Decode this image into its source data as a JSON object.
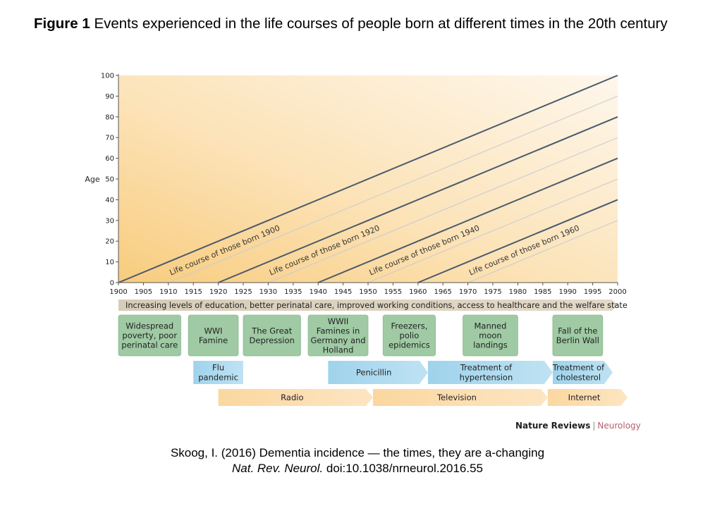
{
  "figure": {
    "label": "Figure 1",
    "title": "Events experienced in the life courses of people born at different times in the 20th century"
  },
  "publisher": {
    "name": "Nature Reviews",
    "separator": "|",
    "journal": "Neurology"
  },
  "citation": {
    "line1": "Skoog, I. (2016) Dementia incidence — the times, they are a-changing",
    "journal_abbrev": "Nat. Rev. Neurol.",
    "doi": "doi:10.1038/nrneurol.2016.55"
  },
  "colors": {
    "gradient_corner": "#f8cc7e",
    "gradient_mid": "#fbe1b3",
    "gradient_far": "#fef7ec",
    "cohort_line": "#4a5a6c",
    "minor_line": "#c8cdd3",
    "axis": "#555555",
    "green_box": "#9fcaa4",
    "green_box_border": "#8bbb92",
    "blue_arrow": "#a6d6ee",
    "orange_arrow": "#fbd9a4",
    "tan_arrow": "#d9cfbd"
  },
  "chart_data": {
    "type": "line",
    "xlabel": "",
    "ylabel": "Age",
    "xlim": [
      1900,
      2000
    ],
    "ylim": [
      0,
      100
    ],
    "x_ticks": [
      1900,
      1905,
      1910,
      1915,
      1920,
      1925,
      1930,
      1935,
      1940,
      1945,
      1950,
      1955,
      1960,
      1965,
      1970,
      1975,
      1980,
      1985,
      1990,
      1995,
      2000
    ],
    "y_ticks": [
      0,
      10,
      20,
      30,
      40,
      50,
      60,
      70,
      80,
      90,
      100
    ],
    "grid": false,
    "series": [
      {
        "name": "Life course of those born 1900",
        "points": [
          [
            1900,
            0
          ],
          [
            2000,
            100
          ]
        ]
      },
      {
        "name": "Life course of those born 1920",
        "points": [
          [
            1920,
            0
          ],
          [
            2000,
            80
          ]
        ]
      },
      {
        "name": "Life course of those born 1940",
        "points": [
          [
            1940,
            0
          ],
          [
            2000,
            60
          ]
        ]
      },
      {
        "name": "Life course of those born 1960",
        "points": [
          [
            1960,
            0
          ],
          [
            2000,
            40
          ]
        ]
      }
    ],
    "minor_cohorts": [
      1910,
      1930,
      1950,
      1970
    ],
    "banner": {
      "text": "Increasing levels of education, better perinatal care, improved working conditions, access to healthcare and the welfare state",
      "start": 1900,
      "end": 2000
    },
    "events": [
      {
        "lines": [
          "Widespread",
          "poverty, poor",
          "perinatal care"
        ],
        "start": 1900,
        "end": 1912.5
      },
      {
        "lines": [
          "WWI",
          "Famine"
        ],
        "start": 1914,
        "end": 1924
      },
      {
        "lines": [
          "The Great",
          "Depression"
        ],
        "start": 1925,
        "end": 1936.5
      },
      {
        "lines": [
          "WWII",
          "Famines in",
          "Germany and",
          "Holland"
        ],
        "start": 1938,
        "end": 1950
      },
      {
        "lines": [
          "Freezers,",
          "polio",
          "epidemics"
        ],
        "start": 1953,
        "end": 1963.5
      },
      {
        "lines": [
          "Manned",
          "moon",
          "landings"
        ],
        "start": 1969,
        "end": 1980
      },
      {
        "lines": [
          "Fall of the",
          "Berlin Wall"
        ],
        "start": 1987,
        "end": 1997
      }
    ],
    "medical_arrows": [
      {
        "lines": [
          "Flu",
          "pandemic"
        ],
        "start": 1915,
        "end": 1925
      },
      {
        "lines": [
          "Penicillin"
        ],
        "start": 1942,
        "end": 1962
      },
      {
        "lines": [
          "Treatment of",
          "hypertension"
        ],
        "start": 1962,
        "end": 1987
      },
      {
        "lines": [
          "Treatment of",
          "cholesterol"
        ],
        "start": 1987,
        "end": 1999
      }
    ],
    "media_arrows": [
      {
        "lines": [
          "Radio"
        ],
        "start": 1920,
        "end": 1951
      },
      {
        "lines": [
          "Television"
        ],
        "start": 1951,
        "end": 1986
      },
      {
        "lines": [
          "Internet"
        ],
        "start": 1986,
        "end": 2002
      }
    ]
  }
}
